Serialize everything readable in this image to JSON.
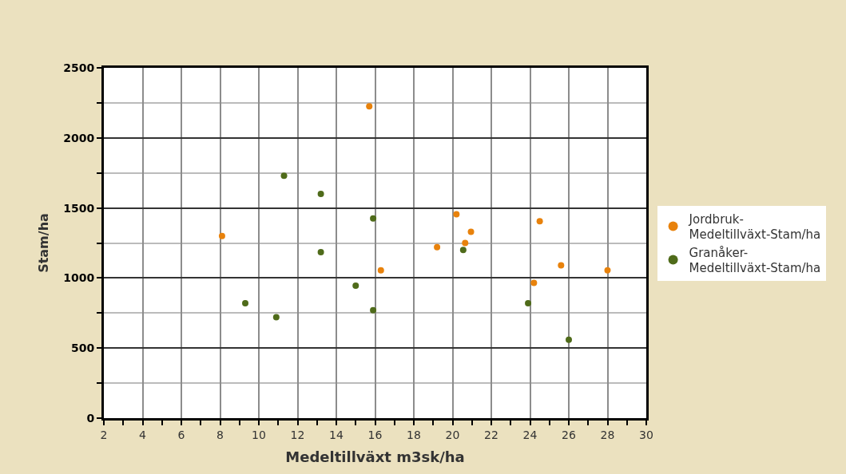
{
  "chart_data": {
    "type": "scatter",
    "xlabel": "Medeltillväxt m3sk/ha",
    "ylabel": "Stam/ha",
    "xlim": [
      2,
      30
    ],
    "xticks": [
      2,
      4,
      6,
      8,
      10,
      12,
      14,
      16,
      18,
      20,
      22,
      24,
      26,
      28,
      30
    ],
    "ylim": [
      0,
      2500
    ],
    "yticks": [
      0,
      500,
      1000,
      1500,
      2000,
      2500
    ],
    "grid": true,
    "legend": "right",
    "marker": "circle",
    "series": [
      {
        "name": "Jordbruk-Medeltillväxt-Stam/ha",
        "color": "#e8820c",
        "x": [
          15.7,
          8.1,
          16.3,
          19.2,
          20.2,
          20.95,
          20.65,
          24.5,
          24.2,
          25.6,
          28.0
        ],
        "values": [
          2225,
          1300,
          1055,
          1220,
          1455,
          1330,
          1250,
          1405,
          965,
          1090,
          1055
        ]
      },
      {
        "name": "Granåker-Medeltillväxt-Stam/ha",
        "color": "#4f6b1a",
        "x": [
          11.3,
          13.2,
          15.9,
          13.2,
          15.0,
          9.3,
          10.9,
          15.9,
          20.55,
          23.9,
          26.0
        ],
        "values": [
          1730,
          1600,
          1425,
          1185,
          945,
          820,
          720,
          770,
          1200,
          820,
          560
        ]
      }
    ]
  }
}
